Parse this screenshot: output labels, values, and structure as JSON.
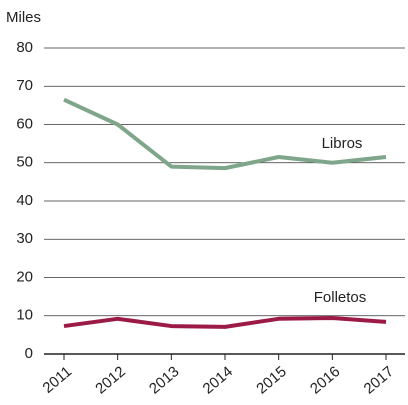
{
  "chart_data": {
    "type": "line",
    "y_label": "Miles",
    "x": [
      "2011",
      "2012",
      "2013",
      "2014",
      "2015",
      "2016",
      "2017"
    ],
    "series": [
      {
        "name": "Libros",
        "color": "#7fa68a",
        "values": [
          66.5,
          60,
          49,
          48.6,
          51.5,
          50,
          51.5
        ]
      },
      {
        "name": "Folletos",
        "color": "#9b1b45",
        "values": [
          7.3,
          9.2,
          7.3,
          7.1,
          9.2,
          9.4,
          8.4
        ]
      }
    ],
    "ylim": [
      0,
      80
    ],
    "yticks": [
      0,
      10,
      20,
      30,
      40,
      50,
      60,
      70,
      80
    ],
    "grid": true
  }
}
